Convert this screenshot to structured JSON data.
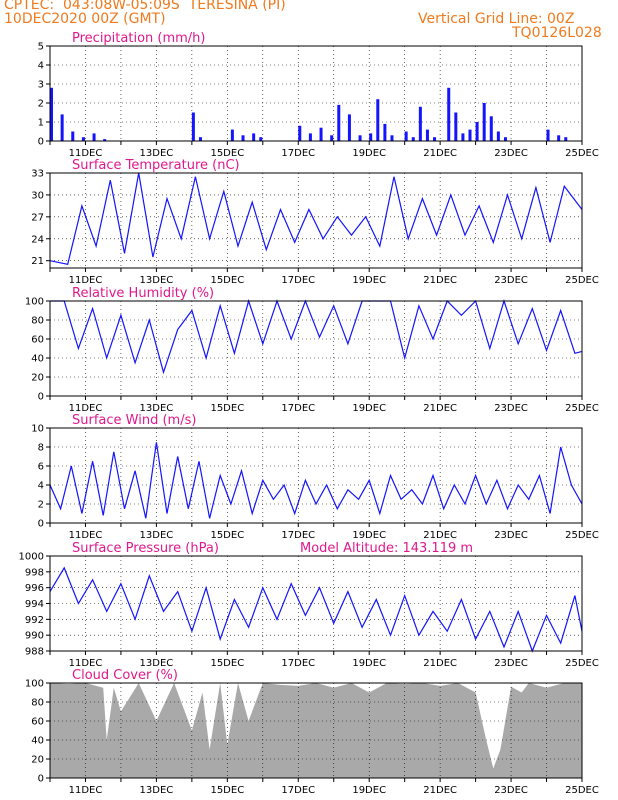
{
  "header": {
    "line1_left": "CPTEC:  043:08W-05:09S  TERESINA (PI)",
    "line2_left": "10DEC2020 00Z (GMT)",
    "line1_right": "Vertical Grid Line: 00Z",
    "line2_right": "TQ0126L028"
  },
  "colors": {
    "header": "#f07a1e",
    "title": "#e0198c",
    "series": "#1414ff",
    "cloud": "#a9a9a9",
    "grid": "#000000"
  },
  "x_ticks": [
    "11DEC",
    "13DEC",
    "15DEC",
    "17DEC",
    "19DEC",
    "21DEC",
    "23DEC",
    "25DEC"
  ],
  "chart_data": [
    {
      "type": "bar",
      "title": "Precipitation (mm/h)",
      "ylim": [
        0,
        5
      ],
      "yticks": [
        0,
        1,
        2,
        3,
        4,
        5
      ],
      "x": [
        0.0,
        0.3,
        0.6,
        0.9,
        1.2,
        1.5,
        4.0,
        4.2,
        5.1,
        5.4,
        5.7,
        5.9,
        7.0,
        7.3,
        7.6,
        7.9,
        8.1,
        8.4,
        8.7,
        9.0,
        9.2,
        9.4,
        9.6,
        10.0,
        10.2,
        10.4,
        10.6,
        10.8,
        11.2,
        11.4,
        11.6,
        11.8,
        12.0,
        12.2,
        12.4,
        12.6,
        12.8,
        14.0,
        14.3,
        14.5
      ],
      "values": [
        2.8,
        1.4,
        0.5,
        0.2,
        0.4,
        0.1,
        1.5,
        0.2,
        0.6,
        0.3,
        0.4,
        0.2,
        0.8,
        0.4,
        0.7,
        0.3,
        1.9,
        1.4,
        0.3,
        0.4,
        2.2,
        0.9,
        0.3,
        0.5,
        0.2,
        1.8,
        0.6,
        0.2,
        2.8,
        1.5,
        0.4,
        0.6,
        1.0,
        2.0,
        1.3,
        0.5,
        0.2,
        0.6,
        0.3,
        0.2
      ]
    },
    {
      "type": "line",
      "title": "Surface Temperature (nC)",
      "ylim": [
        20,
        33
      ],
      "yticks": [
        21,
        24,
        27,
        30,
        33
      ],
      "x": [
        0,
        0.5,
        0.9,
        1.3,
        1.7,
        2.1,
        2.5,
        2.9,
        3.3,
        3.7,
        4.1,
        4.5,
        4.9,
        5.3,
        5.7,
        6.1,
        6.5,
        6.9,
        7.3,
        7.7,
        8.1,
        8.5,
        8.9,
        9.3,
        9.7,
        10.1,
        10.5,
        10.9,
        11.3,
        11.7,
        12.1,
        12.5,
        12.9,
        13.3,
        13.7,
        14.1,
        14.5,
        15
      ],
      "values": [
        21,
        20.5,
        28.5,
        23,
        32,
        22,
        33,
        21.5,
        29.5,
        24,
        32.5,
        24,
        30.5,
        23,
        29,
        22.5,
        28,
        23.5,
        28,
        24,
        27,
        24.5,
        27,
        23,
        32.5,
        24,
        29.5,
        24.5,
        30,
        24.5,
        28.5,
        23.5,
        30,
        24,
        31,
        23.5,
        31.2,
        28
      ],
      "ylabel": ""
    },
    {
      "type": "line",
      "title": "Relative Humidity (%)",
      "ylim": [
        0,
        100
      ],
      "yticks": [
        0,
        20,
        40,
        60,
        80,
        100
      ],
      "x": [
        0,
        0.4,
        0.8,
        1.2,
        1.6,
        2.0,
        2.4,
        2.8,
        3.2,
        3.6,
        4.0,
        4.4,
        4.8,
        5.2,
        5.6,
        6.0,
        6.4,
        6.8,
        7.2,
        7.6,
        8.0,
        8.4,
        8.8,
        9.2,
        9.6,
        10.0,
        10.4,
        10.8,
        11.2,
        11.6,
        12.0,
        12.4,
        12.8,
        13.2,
        13.6,
        14.0,
        14.4,
        14.8,
        15
      ],
      "values": [
        100,
        100,
        50,
        92,
        40,
        85,
        35,
        80,
        25,
        70,
        90,
        40,
        95,
        45,
        100,
        55,
        100,
        60,
        100,
        62,
        95,
        55,
        100,
        100,
        100,
        40,
        95,
        60,
        100,
        85,
        100,
        50,
        100,
        55,
        92,
        48,
        90,
        45,
        47
      ]
    },
    {
      "type": "line",
      "title": "Surface Wind (m/s)",
      "ylim": [
        0,
        10
      ],
      "yticks": [
        0,
        2,
        4,
        6,
        8,
        10
      ],
      "x": [
        0,
        0.3,
        0.6,
        0.9,
        1.2,
        1.5,
        1.8,
        2.1,
        2.4,
        2.7,
        3.0,
        3.3,
        3.6,
        3.9,
        4.2,
        4.5,
        4.8,
        5.1,
        5.4,
        5.7,
        6.0,
        6.3,
        6.6,
        6.9,
        7.2,
        7.5,
        7.8,
        8.1,
        8.4,
        8.7,
        9.0,
        9.3,
        9.6,
        9.9,
        10.2,
        10.5,
        10.8,
        11.1,
        11.4,
        11.7,
        12.0,
        12.3,
        12.6,
        12.9,
        13.2,
        13.5,
        13.8,
        14.1,
        14.4,
        14.7,
        15
      ],
      "values": [
        4,
        1.5,
        6,
        1,
        6.5,
        0.8,
        7.5,
        1.5,
        5.5,
        0.5,
        8.5,
        1,
        7,
        1.5,
        6.5,
        0.5,
        5,
        2,
        5.5,
        1,
        4.5,
        2.5,
        4,
        1,
        4.5,
        2,
        4,
        1.5,
        3.5,
        2.5,
        4.5,
        1,
        5,
        2.5,
        3.5,
        2,
        5,
        1.5,
        4,
        2,
        5,
        2,
        4.5,
        1.5,
        4,
        2.5,
        5,
        1,
        8,
        4,
        2
      ]
    },
    {
      "type": "line",
      "title": "Surface Pressure (hPa)",
      "annotation": "Model Altitude: 143.119  m",
      "ylim": [
        988,
        1000
      ],
      "yticks": [
        988,
        990,
        992,
        994,
        996,
        998,
        1000
      ],
      "x": [
        0,
        0.4,
        0.8,
        1.2,
        1.6,
        2.0,
        2.4,
        2.8,
        3.2,
        3.6,
        4.0,
        4.4,
        4.8,
        5.2,
        5.6,
        6.0,
        6.4,
        6.8,
        7.2,
        7.6,
        8.0,
        8.4,
        8.8,
        9.2,
        9.6,
        10.0,
        10.4,
        10.8,
        11.2,
        11.6,
        12.0,
        12.4,
        12.8,
        13.2,
        13.6,
        14.0,
        14.4,
        14.8,
        15
      ],
      "values": [
        995.5,
        998.5,
        994,
        997,
        993,
        996.5,
        992,
        997.5,
        993,
        995.5,
        990.5,
        996,
        989.5,
        994.5,
        991,
        996,
        992,
        996.5,
        992.5,
        996,
        991.5,
        995.5,
        991,
        994.5,
        990,
        995,
        990,
        993,
        990.5,
        994.5,
        989.5,
        993,
        988.5,
        993,
        988,
        992.5,
        989,
        995,
        990.5
      ]
    },
    {
      "type": "area",
      "title": "Cloud Cover (%)",
      "ylim": [
        0,
        100
      ],
      "yticks": [
        0,
        20,
        40,
        60,
        80,
        100
      ],
      "x": [
        0,
        0.5,
        1.0,
        1.5,
        1.6,
        1.8,
        2.0,
        2.5,
        3.0,
        3.5,
        4.0,
        4.3,
        4.5,
        4.8,
        5.0,
        5.3,
        5.6,
        6.0,
        6.5,
        7.0,
        7.5,
        8.0,
        8.5,
        9.0,
        9.5,
        10.0,
        10.5,
        11.0,
        11.5,
        12.0,
        12.3,
        12.5,
        12.7,
        13.0,
        13.3,
        13.5,
        14.0,
        14.5,
        15
      ],
      "values": [
        100,
        99,
        100,
        95,
        40,
        95,
        70,
        100,
        60,
        100,
        50,
        90,
        30,
        100,
        35,
        100,
        60,
        100,
        98,
        97,
        100,
        95,
        100,
        90,
        100,
        99,
        100,
        97,
        100,
        90,
        40,
        10,
        30,
        96,
        90,
        100,
        95,
        100,
        100
      ]
    }
  ]
}
